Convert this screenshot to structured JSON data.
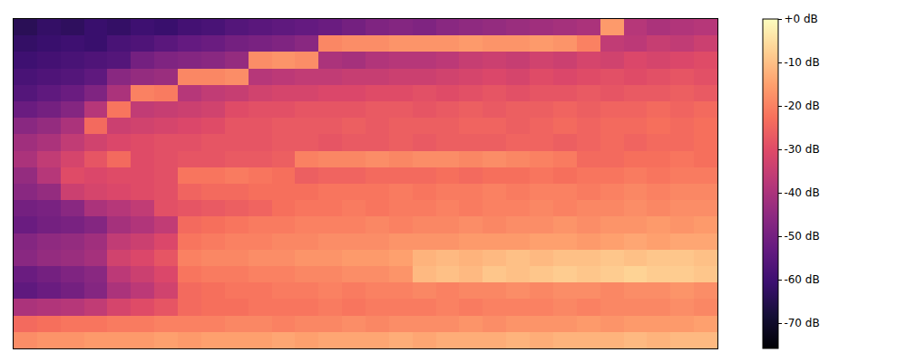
{
  "chart_data": {
    "type": "heatmap",
    "tick_labels": false,
    "color_range": [
      -75.8,
      0
    ],
    "color_ticks": [
      {
        "value": 0,
        "label": "+0 dB"
      },
      {
        "value": -10,
        "label": "-10 dB"
      },
      {
        "value": -20,
        "label": "-20 dB"
      },
      {
        "value": -30,
        "label": "-30 dB"
      },
      {
        "value": -40,
        "label": "-40 dB"
      },
      {
        "value": -50,
        "label": "-50 dB"
      },
      {
        "value": -60,
        "label": "-60 dB"
      },
      {
        "value": -70,
        "label": "-70 dB"
      }
    ],
    "cells": [
      [
        -64,
        -62,
        -63,
        -61,
        -62,
        -60,
        -61,
        -59,
        -58,
        -56,
        -55,
        -54,
        -53,
        -52,
        -50,
        -48,
        -47,
        -48,
        -46,
        -45,
        -44,
        -43,
        -42,
        -41,
        -40,
        -16,
        -38,
        -40,
        -39,
        -38
      ],
      [
        -62,
        -61,
        -60,
        -61,
        -58,
        -57,
        -55,
        -53,
        -52,
        -50,
        -49,
        -48,
        -46,
        -19,
        -18,
        -18,
        -17,
        -17,
        -17,
        -16,
        -17,
        -17,
        -16,
        -17,
        -20,
        -36,
        -37,
        -35,
        -36,
        -34
      ],
      [
        -60,
        -59,
        -58,
        -57,
        -56,
        -50,
        -48,
        -47,
        -46,
        -44,
        -18,
        -17,
        -18,
        -40,
        -41,
        -39,
        -38,
        -38,
        -37,
        -35,
        -34,
        -35,
        -33,
        -34,
        -32,
        -33,
        -31,
        -32,
        -31,
        -30
      ],
      [
        -58,
        -57,
        -56,
        -54,
        -46,
        -44,
        -43,
        -19,
        -19,
        -18,
        -38,
        -37,
        -36,
        -36,
        -35,
        -35,
        -34,
        -34,
        -33,
        -32,
        -31,
        -32,
        -30,
        -31,
        -30,
        -29,
        -30,
        -29,
        -28,
        -29
      ],
      [
        -56,
        -54,
        -52,
        -48,
        -40,
        -20,
        -21,
        -38,
        -36,
        -35,
        -33,
        -32,
        -32,
        -31,
        -31,
        -30,
        -30,
        -29,
        -30,
        -29,
        -28,
        -29,
        -28,
        -28,
        -27,
        -28,
        -27,
        -27,
        -26,
        -27
      ],
      [
        -52,
        -50,
        -47,
        -38,
        -22,
        -36,
        -35,
        -34,
        -33,
        -30,
        -29,
        -29,
        -28,
        -28,
        -28,
        -27,
        -27,
        -28,
        -27,
        -26,
        -27,
        -26,
        -26,
        -25,
        -26,
        -25,
        -25,
        -24,
        -25,
        -24
      ],
      [
        -46,
        -44,
        -40,
        -24,
        -34,
        -33,
        -32,
        -31,
        -30,
        -28,
        -28,
        -27,
        -27,
        -27,
        -26,
        -27,
        -26,
        -26,
        -26,
        -25,
        -25,
        -26,
        -25,
        -24,
        -25,
        -24,
        -24,
        -23,
        -24,
        -23
      ],
      [
        -42,
        -40,
        -36,
        -33,
        -31,
        -30,
        -29,
        -29,
        -28,
        -28,
        -28,
        -27,
        -27,
        -28,
        -27,
        -27,
        -26,
        -27,
        -26,
        -26,
        -26,
        -25,
        -25,
        -26,
        -25,
        -24,
        -25,
        -24,
        -24,
        -23
      ],
      [
        -40,
        -36,
        -32,
        -28,
        -24,
        -30,
        -29,
        -28,
        -28,
        -27,
        -27,
        -26,
        -20,
        -19,
        -19,
        -18,
        -19,
        -18,
        -18,
        -19,
        -18,
        -19,
        -20,
        -21,
        -24,
        -24,
        -23,
        -23,
        -22,
        -23
      ],
      [
        -44,
        -38,
        -30,
        -31,
        -30,
        -30,
        -29,
        -22,
        -22,
        -21,
        -22,
        -23,
        -26,
        -25,
        -25,
        -24,
        -24,
        -24,
        -23,
        -24,
        -23,
        -23,
        -22,
        -23,
        -22,
        -22,
        -21,
        -22,
        -21,
        -21
      ],
      [
        -46,
        -44,
        -34,
        -32,
        -31,
        -30,
        -29,
        -25,
        -24,
        -24,
        -23,
        -23,
        -23,
        -22,
        -22,
        -22,
        -21,
        -22,
        -21,
        -21,
        -20,
        -21,
        -20,
        -20,
        -21,
        -20,
        -19,
        -20,
        -19,
        -19
      ],
      [
        -50,
        -49,
        -46,
        -40,
        -38,
        -36,
        -29,
        -28,
        -27,
        -26,
        -25,
        -23,
        -22,
        -22,
        -21,
        -22,
        -21,
        -21,
        -20,
        -21,
        -20,
        -20,
        -19,
        -20,
        -19,
        -19,
        -18,
        -19,
        -18,
        -18
      ],
      [
        -52,
        -50,
        -49,
        -47,
        -41,
        -39,
        -36,
        -24,
        -23,
        -22,
        -21,
        -21,
        -20,
        -20,
        -20,
        -19,
        -20,
        -19,
        -19,
        -18,
        -19,
        -18,
        -18,
        -17,
        -18,
        -17,
        -17,
        -16,
        -17,
        -16
      ],
      [
        -47,
        -45,
        -44,
        -42,
        -36,
        -34,
        -31,
        -22,
        -21,
        -20,
        -20,
        -19,
        -19,
        -18,
        -18,
        -18,
        -17,
        -17,
        -17,
        -16,
        -16,
        -16,
        -15,
        -15,
        -16,
        -15,
        -14,
        -15,
        -14,
        -14
      ],
      [
        -46,
        -44,
        -43,
        -41,
        -33,
        -31,
        -28,
        -20,
        -19,
        -19,
        -18,
        -18,
        -17,
        -17,
        -16,
        -16,
        -15,
        -12,
        -11,
        -12,
        -11,
        -10,
        -11,
        -10,
        -10,
        -9,
        -10,
        -9,
        -9,
        -10
      ],
      [
        -52,
        -50,
        -48,
        -46,
        -37,
        -34,
        -31,
        -22,
        -21,
        -21,
        -20,
        -20,
        -19,
        -19,
        -18,
        -18,
        -17,
        -11,
        -10,
        -11,
        -9,
        -10,
        -9,
        -8,
        -9,
        -8,
        -7,
        -8,
        -8,
        -9
      ],
      [
        -54,
        -52,
        -50,
        -47,
        -40,
        -37,
        -33,
        -24,
        -23,
        -22,
        -22,
        -21,
        -21,
        -20,
        -21,
        -20,
        -20,
        -19,
        -20,
        -19,
        -19,
        -18,
        -19,
        -18,
        -18,
        -19,
        -18,
        -18,
        -17,
        -18
      ],
      [
        -40,
        -39,
        -38,
        -36,
        -32,
        -30,
        -28,
        -24,
        -23,
        -23,
        -22,
        -22,
        -22,
        -21,
        -22,
        -21,
        -21,
        -21,
        -20,
        -21,
        -20,
        -20,
        -20,
        -19,
        -20,
        -19,
        -19,
        -19,
        -18,
        -19
      ],
      [
        -24,
        -23,
        -22,
        -22,
        -21,
        -21,
        -20,
        -20,
        -20,
        -19,
        -19,
        -20,
        -19,
        -19,
        -18,
        -19,
        -18,
        -18,
        -18,
        -17,
        -18,
        -17,
        -17,
        -17,
        -16,
        -17,
        -16,
        -16,
        -16,
        -15
      ],
      [
        -18,
        -17,
        -17,
        -16,
        -16,
        -16,
        -15,
        -16,
        -15,
        -15,
        -15,
        -14,
        -15,
        -14,
        -14,
        -14,
        -13,
        -14,
        -13,
        -13,
        -13,
        -12,
        -13,
        -12,
        -12,
        -12,
        -11,
        -12,
        -11,
        -11
      ]
    ]
  }
}
